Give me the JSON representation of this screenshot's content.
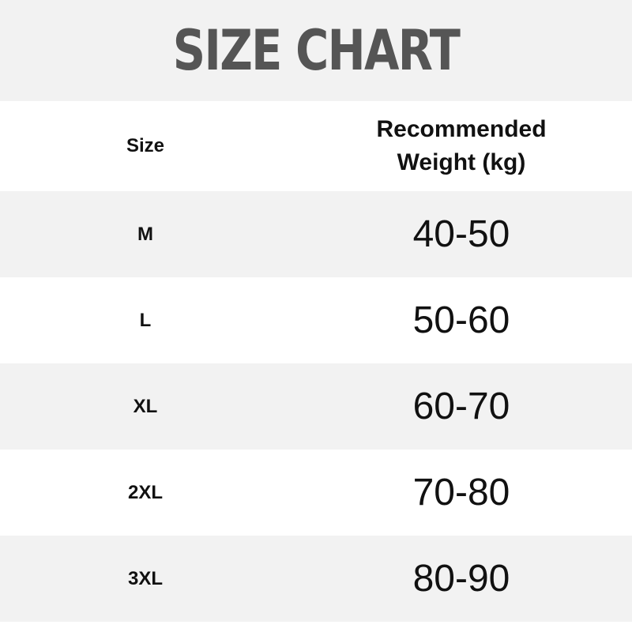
{
  "title": "SIZE CHART",
  "table": {
    "headers": {
      "size": "Size",
      "weight_line1": "Recommended",
      "weight_line2": "Weight (kg)"
    },
    "rows": [
      {
        "size": "M",
        "weight": "40-50"
      },
      {
        "size": "L",
        "weight": "50-60"
      },
      {
        "size": "XL",
        "weight": "60-70"
      },
      {
        "size": "2XL",
        "weight": "70-80"
      },
      {
        "size": "3XL",
        "weight": "80-90"
      }
    ]
  },
  "colors": {
    "band": "#f2f2f2",
    "title": "#555555"
  }
}
